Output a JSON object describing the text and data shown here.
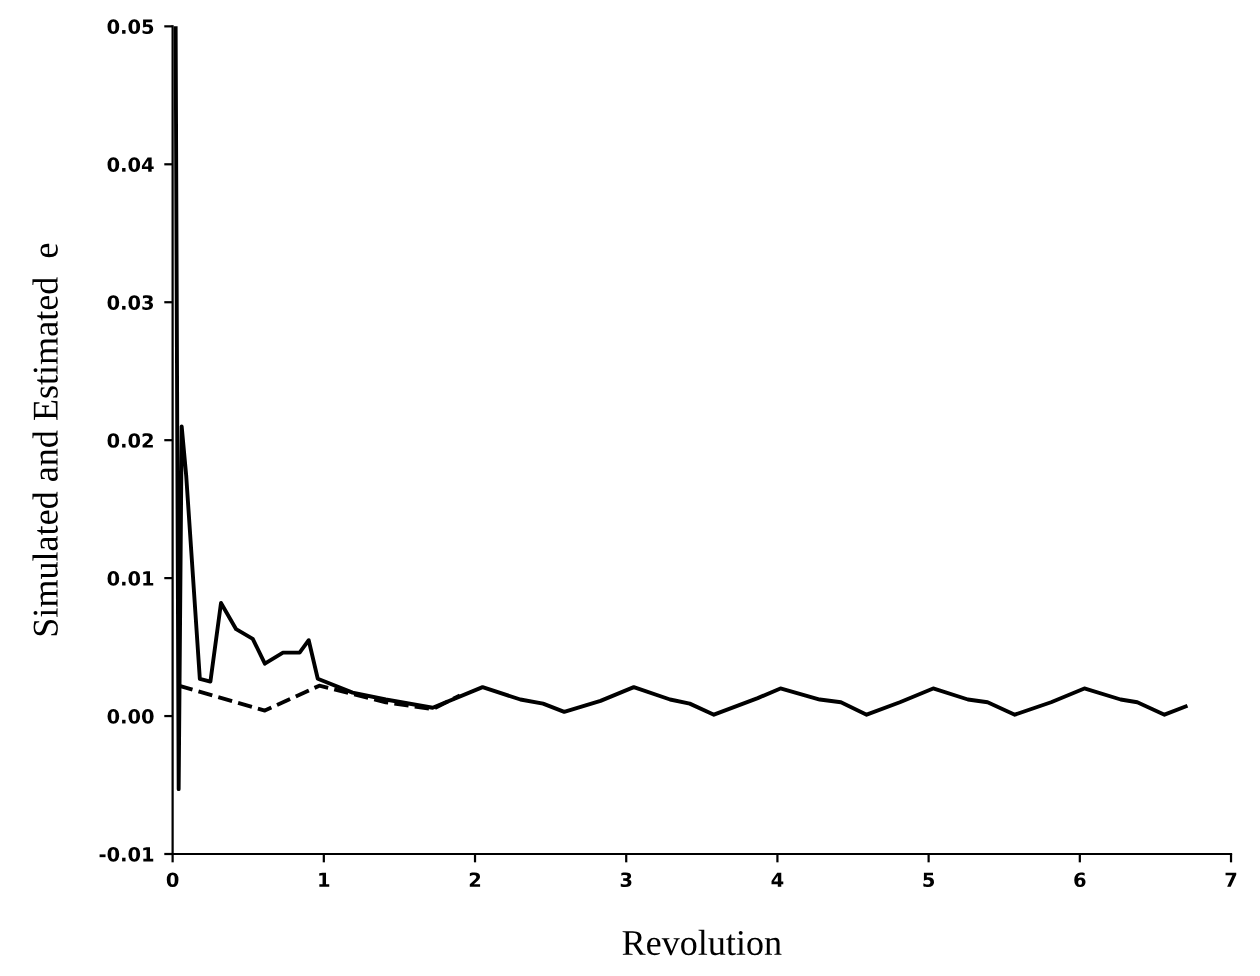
{
  "chart_data": {
    "type": "line",
    "xlabel": "Revolution",
    "ylabel": "Simulated and Estimated  e",
    "xlim": [
      0,
      7
    ],
    "xticks": [
      0,
      1,
      2,
      3,
      4,
      5,
      6,
      7
    ],
    "ylim": [
      -0.01,
      0.05
    ],
    "yticks": [
      {
        "value": -0.01,
        "label": "-0.01"
      },
      {
        "value": 0,
        "label": "0.00"
      },
      {
        "value": 0.01,
        "label": "0.01"
      },
      {
        "value": 0.02,
        "label": "0.02"
      },
      {
        "value": 0.03,
        "label": "0.03"
      },
      {
        "value": 0.04,
        "label": "0.04"
      },
      {
        "value": 0.05,
        "label": "0.05"
      }
    ],
    "grid": false,
    "legend": false,
    "marker": "none",
    "series": [
      {
        "color": "#000000",
        "line_style": "solid",
        "x": [
          0.02,
          0.04,
          0.06,
          0.09,
          0.18,
          0.25,
          0.32,
          0.42,
          0.53,
          0.61,
          0.73,
          0.84,
          0.9,
          0.96,
          1.19,
          1.41,
          1.72,
          2.05,
          2.3,
          2.45,
          2.59,
          2.83,
          3.05,
          3.29,
          3.42,
          3.58,
          3.87,
          4.02,
          4.28,
          4.42,
          4.59,
          4.81,
          5.03,
          5.26,
          5.39,
          5.57,
          5.81,
          6.03,
          6.27,
          6.38,
          6.56,
          6.7
        ],
        "values": [
          0.05,
          -0.0053,
          0.021,
          0.0174,
          0.0027,
          0.0025,
          0.0082,
          0.0063,
          0.0056,
          0.0038,
          0.0046,
          0.0046,
          0.0055,
          0.0027,
          0.0017,
          0.0012,
          0.0006,
          0.0021,
          0.0012,
          0.0009,
          0.0003,
          0.0011,
          0.0021,
          0.0012,
          0.0009,
          0.0001,
          0.0013,
          0.002,
          0.0012,
          0.001,
          0.0001,
          0.001,
          0.002,
          0.0012,
          0.001,
          0.0001,
          0.001,
          0.002,
          0.0012,
          0.001,
          0.0001,
          0.0007
        ]
      },
      {
        "color": "#000000",
        "line_style": "dashed",
        "x": [
          0.04,
          0.61,
          0.97,
          1.19,
          1.41,
          1.72,
          1.9
        ],
        "values": [
          0.0022,
          0.0004,
          0.0022,
          0.0016,
          0.001,
          0.0005,
          0.0015
        ]
      }
    ]
  }
}
